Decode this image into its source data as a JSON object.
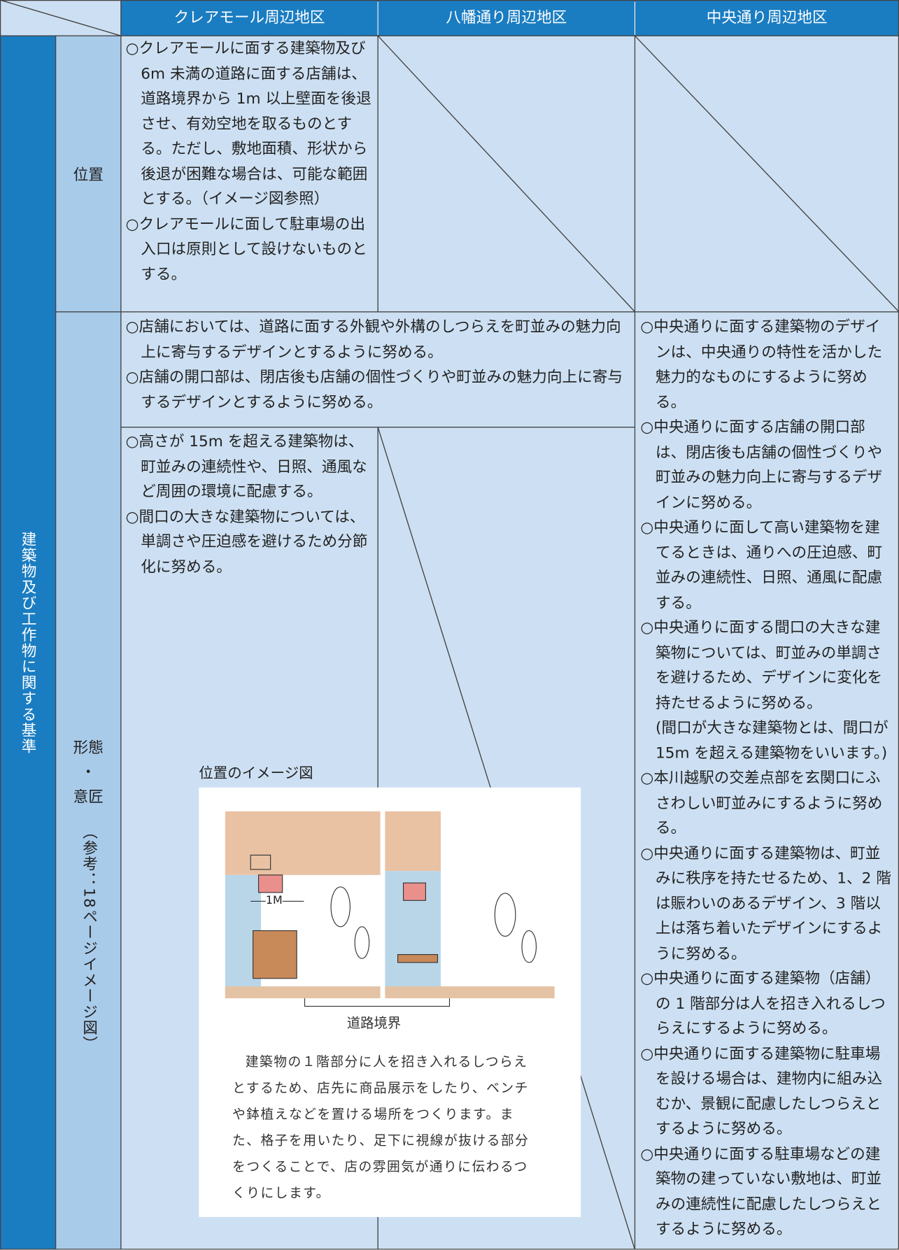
{
  "header": {
    "columns": [
      "クレアモール周辺地区",
      "八幡通り周辺地区",
      "中央通り周辺地区"
    ]
  },
  "category": "建築物及び工作物に関する基準",
  "rows": [
    {
      "label": "位置",
      "cells": {
        "claremall": [
          "○クレアモールに面する建築物及び 6m 未満の道路に面する店舗は、道路境界から 1m 以上壁面を後退させ、有効空地を取るものとする。ただし、敷地面積、形状から後退が困難な場合は、可能な範囲とする。（イメージ図参照）",
          "○クレアモールに面して駐車場の出入口は原則として設けないものとする。"
        ]
      }
    },
    {
      "label": [
        "形態",
        "・",
        "意匠"
      ],
      "note": "（参考：18ページイメージ図）",
      "cells": {
        "shared": [
          "○店舗においては、道路に面する外観や外構のしつらえを町並みの魅力向上に寄与するデザインとするように努める。",
          "○店舗の開口部は、閉店後も店舗の個性づくりや町並みの魅力向上に寄与するデザインとするように努める。"
        ],
        "claremall": [
          "○高さが 15m を超える建築物は、町並みの連続性や、日照、通風など周囲の環境に配慮する。",
          "○間口の大きな建築物については、単調さや圧迫感を避けるため分節化に努める。"
        ],
        "chuo": [
          "○中央通りに面する建築物のデザインは、中央通りの特性を活かした魅力的なものにするように努める。",
          "○中央通りに面する店舗の開口部は、閉店後も店舗の個性づくりや町並みの魅力向上に寄与するデザインに努める。",
          "○中央通りに面して高い建築物を建てるときは、通りへの圧迫感、町並みの連続性、日照、通風に配慮する。",
          "○中央通りに面する間口の大きな建築物については、町並みの単調さを避けるため、デザインに変化を持たせるように努める。",
          "(間口が大きな建築物とは、間口が15m を超える建築物をいいます。)",
          "○本川越駅の交差点部を玄関口にふさわしい町並みにするように努める。",
          "○中央通りに面する建築物は、町並みに秩序を持たせるため、1、2 階は賑わいのあるデザイン、3 階以上は落ち着いたデザインにするように努める。",
          "○中央通りに面する建築物（店舗）の 1 階部分は人を招き入れるしつらえにするように努める。",
          "○中央通りに面する建築物に駐車場を設ける場合は、建物内に組み込むか、景観に配慮したしつらえとするように努める。",
          "○中央通りに面する駐車場などの建築物の建っていない敷地は、町並みの連続性に配慮したしつらえとするように努める。"
        ]
      }
    }
  ],
  "figure": {
    "title": "位置のイメージ図",
    "distance": "1M",
    "boundary": "道路境界",
    "caption": "建築物の１階部分に人を招き入れるしつらえとするため、店先に商品展示をしたり、ベンチや鉢植えなどを置ける場所をつくります。また、格子を用いたり、足下に視線が抜ける部分をつくることで、店の雰囲気が通りに伝わるつくりにします。"
  }
}
